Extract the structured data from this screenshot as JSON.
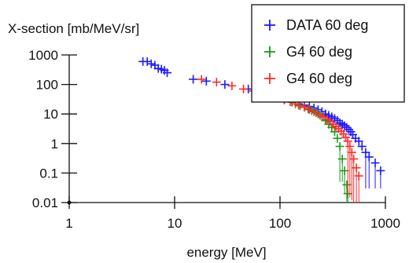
{
  "chart_data": {
    "type": "scatter",
    "ylabel": "X-section [mb/MeV/sr]",
    "xlabel": "energy [MeV]",
    "xscale": "log",
    "yscale": "log",
    "xlim": [
      1,
      1000
    ],
    "ylim": [
      0.01,
      1000
    ],
    "xticks": [
      "1",
      "10",
      "100",
      "1000"
    ],
    "yticks": [
      "1000",
      "100",
      "10",
      "1",
      "0.1",
      "0.01"
    ],
    "legend_position": "top-right",
    "series": [
      {
        "name": "DATA 60 deg",
        "color": "#1a1aff",
        "x": [
          5.0,
          5.5,
          6.0,
          6.5,
          7.0,
          7.5,
          8.0,
          8.5,
          15,
          20,
          30,
          50,
          70,
          90,
          110,
          130,
          150,
          170,
          190,
          210,
          230,
          250,
          270,
          290,
          310,
          330,
          350,
          370,
          390,
          410,
          430,
          450,
          470,
          490,
          520,
          560,
          600,
          650,
          700,
          800,
          900
        ],
        "y": [
          600,
          600,
          500,
          450,
          350,
          330,
          300,
          250,
          150,
          130,
          100,
          70,
          50,
          40,
          32,
          27,
          22,
          20,
          18,
          16,
          14,
          12,
          10,
          9,
          8,
          7,
          6,
          5,
          4.5,
          4,
          3.5,
          3,
          2.5,
          2,
          1.5,
          1.2,
          0.8,
          0.5,
          0.35,
          0.22,
          0.12
        ],
        "err_lo": [
          null,
          null,
          null,
          null,
          null,
          null,
          null,
          null,
          null,
          null,
          null,
          null,
          null,
          null,
          null,
          null,
          null,
          null,
          null,
          null,
          null,
          null,
          null,
          null,
          null,
          null,
          null,
          null,
          null,
          null,
          null,
          null,
          null,
          null,
          null,
          null,
          null,
          0.03,
          0.03,
          0.03,
          0.03
        ]
      },
      {
        "name": "G4  60 deg",
        "color": "#1a9a1a",
        "x": [
          70,
          90,
          110,
          130,
          150,
          170,
          190,
          210,
          230,
          250,
          270,
          290,
          310,
          330,
          350,
          370,
          390,
          410,
          430,
          440
        ],
        "y": [
          40,
          35,
          30,
          25,
          20,
          17,
          14,
          12,
          10,
          8,
          6,
          4.5,
          3.5,
          2.5,
          1.5,
          0.8,
          0.3,
          0.12,
          0.04,
          0.02
        ],
        "err_lo": [
          null,
          null,
          null,
          null,
          null,
          null,
          null,
          null,
          null,
          null,
          null,
          null,
          null,
          null,
          null,
          0.05,
          0.05,
          0.02,
          0.01,
          0.01
        ]
      },
      {
        "name": "G4  60 deg",
        "color": "#ff2a2a",
        "x": [
          18,
          25,
          35,
          45,
          55,
          65,
          75,
          85,
          95,
          110,
          125,
          140,
          155,
          170,
          185,
          200,
          220,
          240,
          260,
          280,
          300,
          320,
          340,
          360,
          380,
          400,
          420,
          440,
          460,
          480,
          500,
          530,
          560
        ],
        "y": [
          150,
          120,
          90,
          70,
          60,
          50,
          45,
          40,
          35,
          30,
          26,
          22,
          19,
          17,
          15,
          13,
          11,
          9,
          8,
          6.5,
          5.5,
          4.5,
          3.8,
          3.2,
          2.6,
          2.1,
          1.6,
          1.2,
          0.8,
          0.5,
          0.3,
          0.15,
          0.08
        ],
        "err_lo": [
          null,
          null,
          null,
          null,
          null,
          null,
          null,
          null,
          null,
          null,
          null,
          null,
          null,
          null,
          null,
          null,
          null,
          null,
          null,
          null,
          null,
          null,
          null,
          null,
          null,
          null,
          null,
          0.02,
          0.015,
          0.012,
          0.01,
          0.01,
          0.01
        ]
      }
    ]
  }
}
